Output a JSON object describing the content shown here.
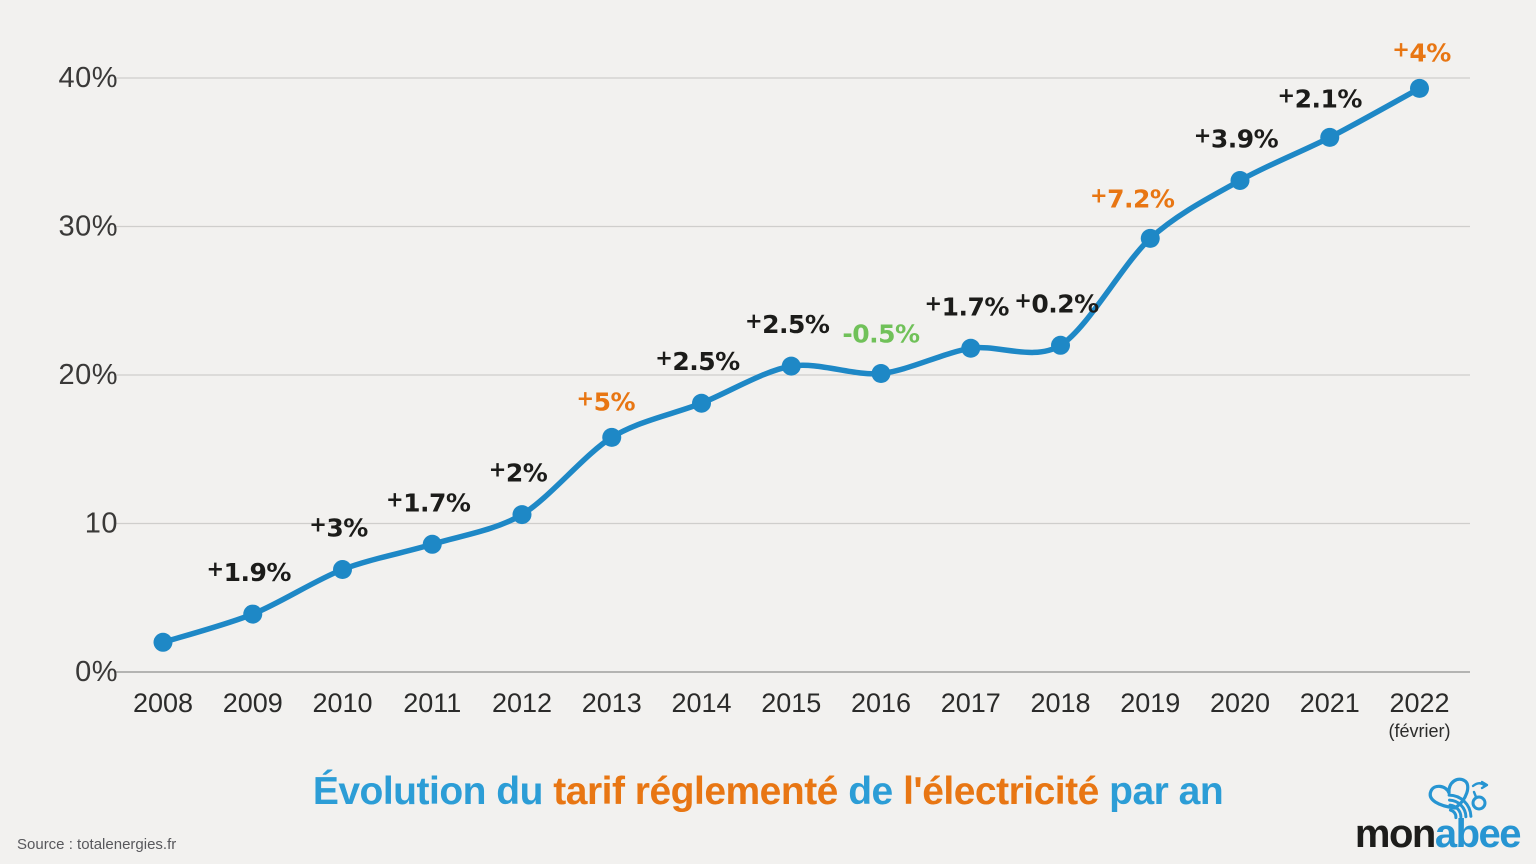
{
  "colors": {
    "background": "#f2f1ef",
    "line": "#1e88c6",
    "point": "#1e88c6",
    "grid": "#cfcecc",
    "grid_zero": "#8f8f8d",
    "axis_text": "#3a3938",
    "x_axis_text": "#2b2b2a",
    "label_black": "#1c1c1a",
    "label_orange": "#e87613",
    "label_green": "#70c159",
    "title_blue": "#2c9dd6",
    "title_orange": "#e87613",
    "source_text": "#58585c",
    "logo_black": "#1d1d1b",
    "logo_blue": "#2795d2"
  },
  "chart_data": {
    "type": "line",
    "title": "Évolution du tarif réglementé de l'électricité par an",
    "categories": [
      "2008",
      "2009",
      "2010",
      "2011",
      "2012",
      "2013",
      "2014",
      "2015",
      "2016",
      "2017",
      "2018",
      "2019",
      "2020",
      "2021",
      "2022"
    ],
    "x_subnote": {
      "index": 14,
      "text": "(février)"
    },
    "cumulative_values": [
      2,
      3.9,
      6.9,
      8.6,
      10.6,
      15.8,
      18.1,
      20.6,
      20.1,
      21.8,
      22,
      29.2,
      33.1,
      36,
      39.3
    ],
    "annual_change_labels": [
      null,
      "+1.9%",
      "+3%",
      "+1.7%",
      "+2%",
      "+5%",
      "+2.5%",
      "+2.5%",
      "-0.5%",
      "+1.7%",
      "+0.2%",
      "+7.2%",
      "+3.9%",
      "+2.1%",
      "+4%"
    ],
    "annual_change_percent": [
      null,
      1.9,
      3,
      1.7,
      2,
      5,
      2.5,
      2.5,
      -0.5,
      1.7,
      0.2,
      7.2,
      3.9,
      2.1,
      4
    ],
    "label_colors": [
      null,
      "black",
      "black",
      "black",
      "black",
      "orange",
      "black",
      "black",
      "green",
      "black",
      "black",
      "orange",
      "black",
      "black",
      "orange"
    ],
    "y_ticks": [
      {
        "value": 0,
        "label": "0%"
      },
      {
        "value": 10,
        "label": "10"
      },
      {
        "value": 20,
        "label": "20%"
      },
      {
        "value": 30,
        "label": "30%"
      },
      {
        "value": 40,
        "label": "40%"
      }
    ],
    "ylim": [
      0,
      44
    ],
    "grid": "horizontal",
    "legend": "none"
  },
  "title_segments": [
    {
      "text": "Évolution du ",
      "color": "blue"
    },
    {
      "text": "tarif réglementé",
      "color": "orange"
    },
    {
      "text": " de ",
      "color": "blue"
    },
    {
      "text": "l'électricité",
      "color": "orange"
    },
    {
      "text": " par an",
      "color": "blue"
    }
  ],
  "source": "Source : totalenergies.fr",
  "logo": {
    "text_black": "mon",
    "text_blue": "abee"
  },
  "icons": {
    "logo": "bee-icon"
  }
}
